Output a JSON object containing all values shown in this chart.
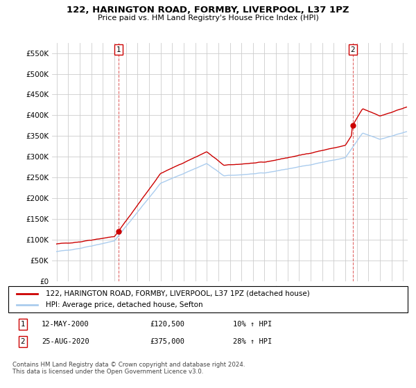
{
  "title": "122, HARINGTON ROAD, FORMBY, LIVERPOOL, L37 1PZ",
  "subtitle": "Price paid vs. HM Land Registry's House Price Index (HPI)",
  "ylabel_ticks": [
    "£0",
    "£50K",
    "£100K",
    "£150K",
    "£200K",
    "£250K",
    "£300K",
    "£350K",
    "£400K",
    "£450K",
    "£500K",
    "£550K"
  ],
  "ytick_values": [
    0,
    50000,
    100000,
    150000,
    200000,
    250000,
    300000,
    350000,
    400000,
    450000,
    500000,
    550000
  ],
  "ylim": [
    0,
    575000
  ],
  "legend_line1": "122, HARINGTON ROAD, FORMBY, LIVERPOOL, L37 1PZ (detached house)",
  "legend_line2": "HPI: Average price, detached house, Sefton",
  "annotation1_date": "12-MAY-2000",
  "annotation1_price": "£120,500",
  "annotation1_hpi": "10% ↑ HPI",
  "annotation2_date": "25-AUG-2020",
  "annotation2_price": "£375,000",
  "annotation2_hpi": "28% ↑ HPI",
  "copyright": "Contains HM Land Registry data © Crown copyright and database right 2024.\nThis data is licensed under the Open Government Licence v3.0.",
  "sale1_x": 2000.37,
  "sale1_y": 120500,
  "sale2_x": 2020.65,
  "sale2_y": 375000,
  "line_color_red": "#cc0000",
  "line_color_blue": "#aaccee",
  "marker_color": "#cc0000",
  "background_color": "#ffffff",
  "grid_color": "#cccccc",
  "xlim_left": 1994.6,
  "xlim_right": 2025.4
}
